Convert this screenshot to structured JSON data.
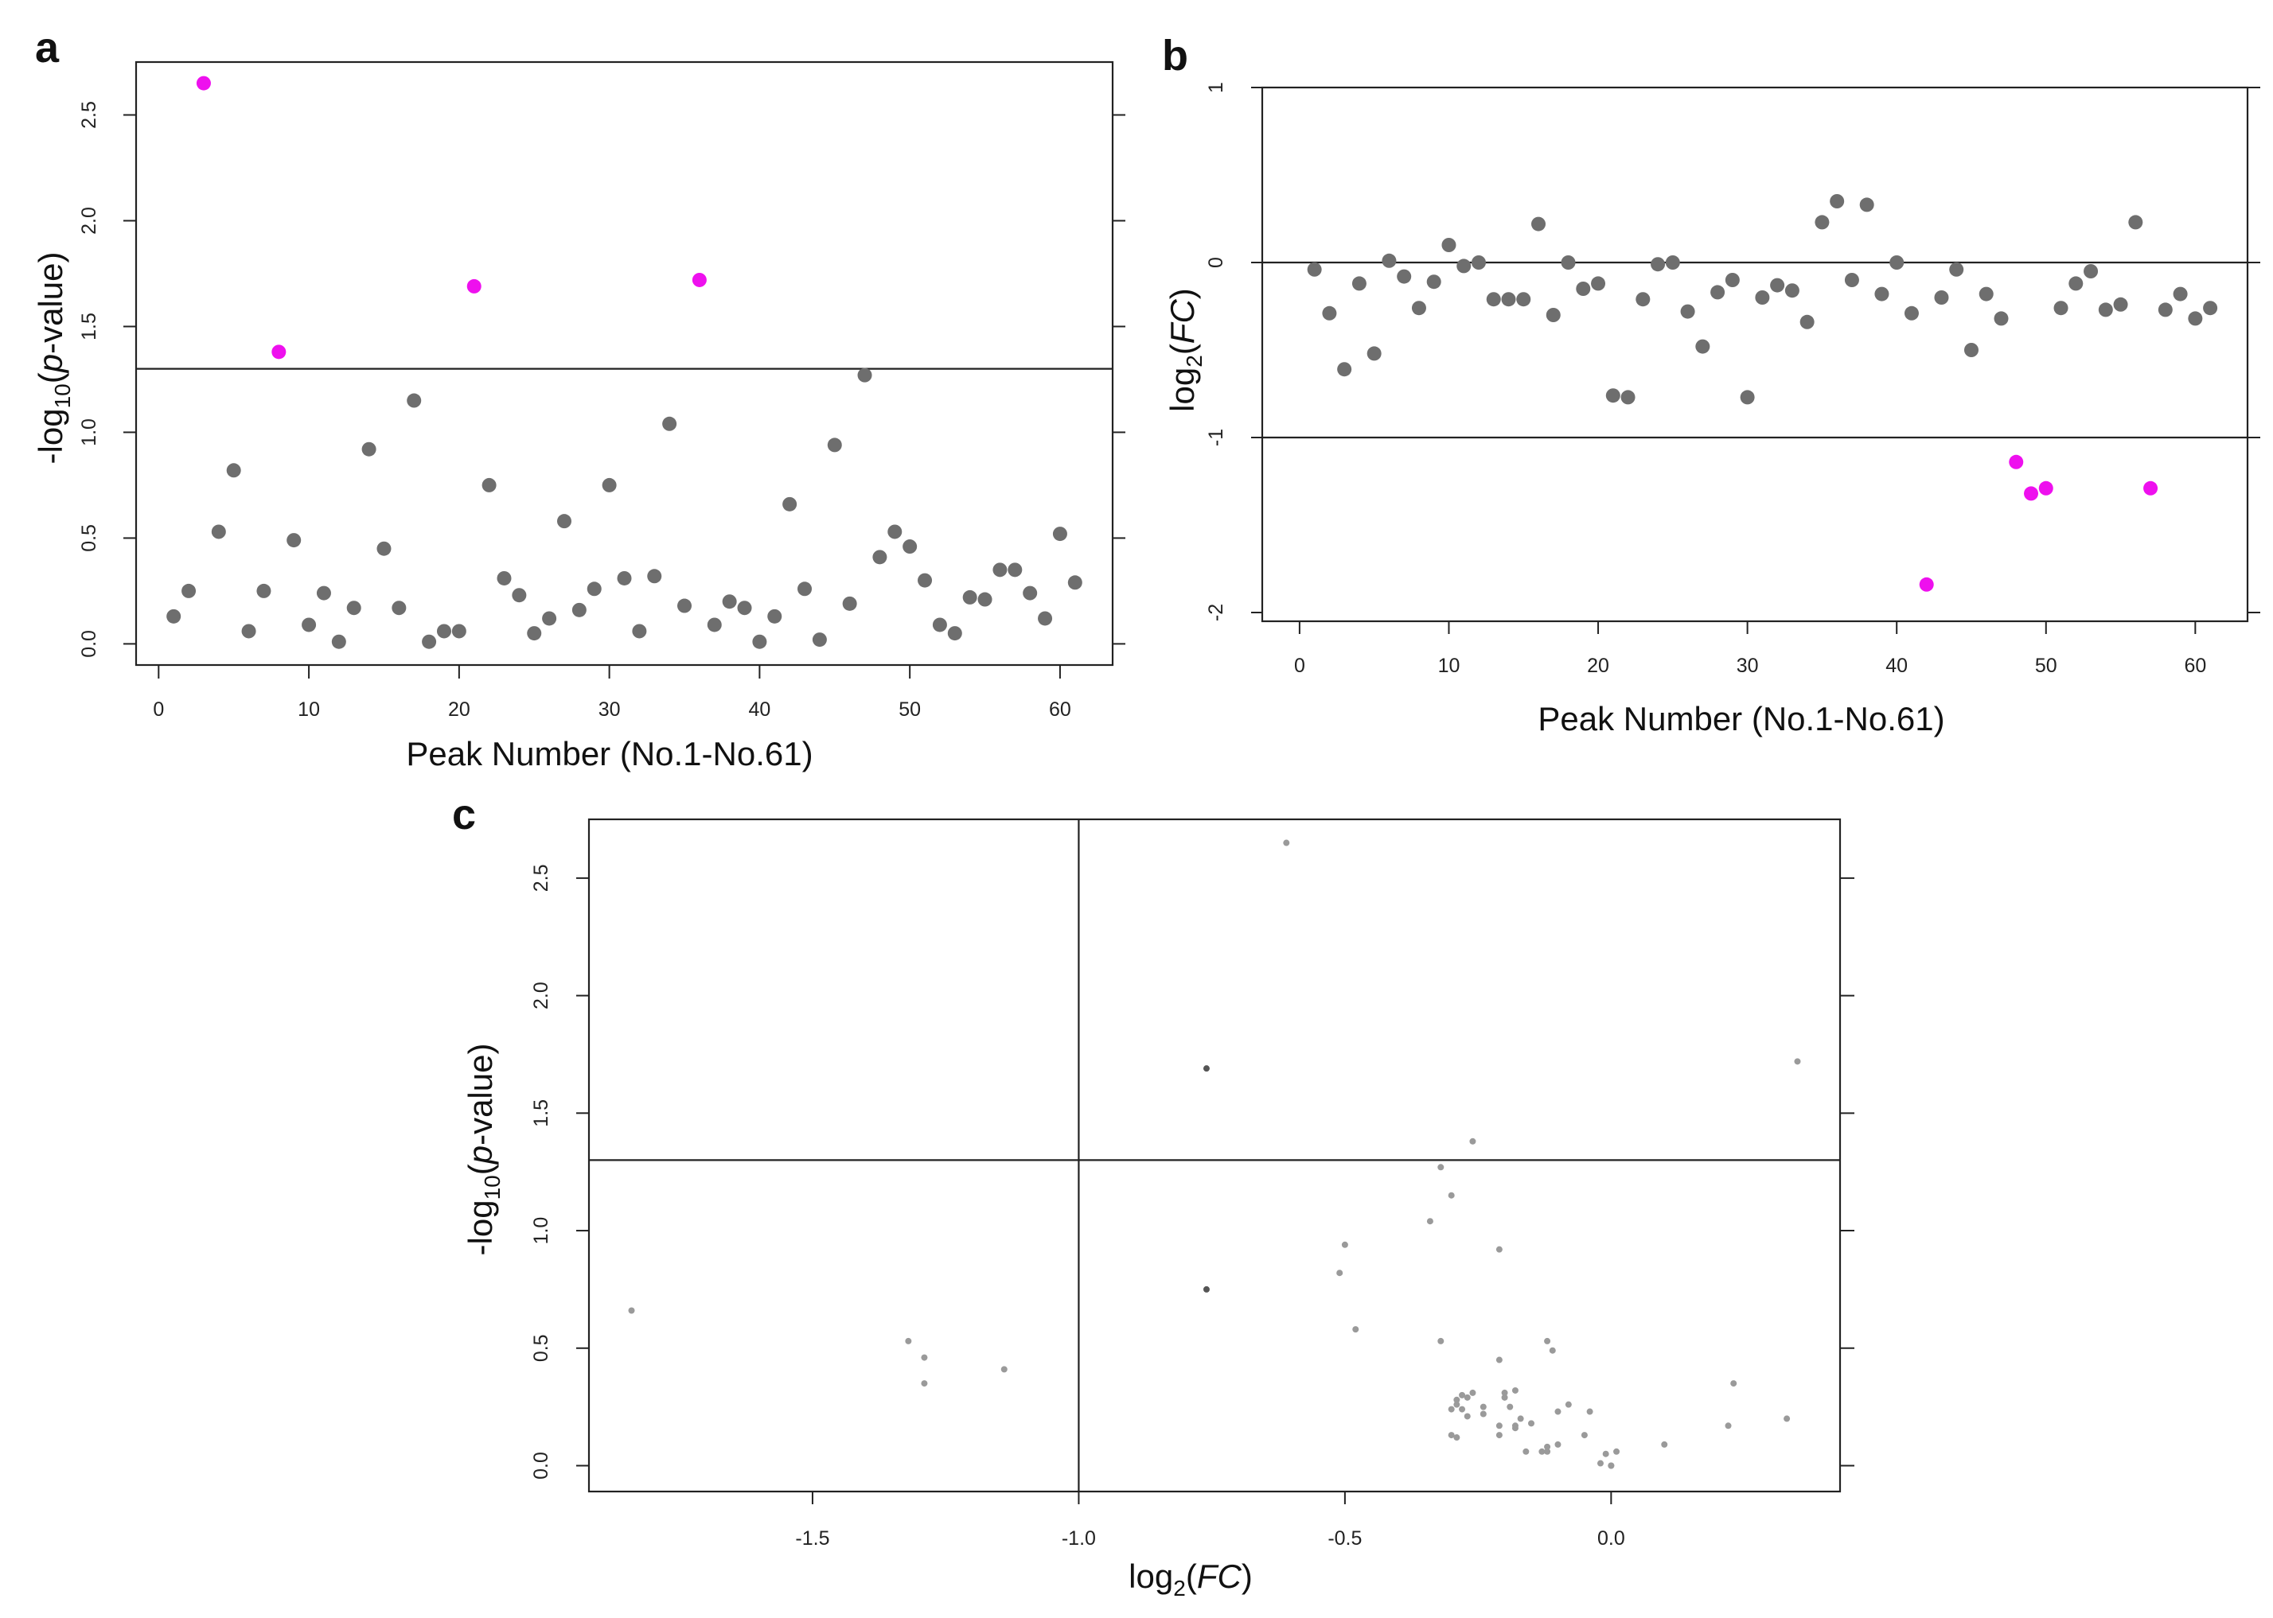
{
  "chart_data": [
    {
      "panel": "a",
      "type": "scatter",
      "xlabel": "Peak Number (No.1-No.61)",
      "ylabel": "-log10(p-value)",
      "ylabel_parts": [
        "-log",
        "10",
        "(",
        "p",
        "-value)"
      ],
      "xlim": [
        -1.5,
        63.5
      ],
      "ylim": [
        -0.1,
        2.75
      ],
      "xticks": [
        "0",
        "10",
        "20",
        "30",
        "40",
        "50",
        "60"
      ],
      "yticks": [
        "0.0",
        "0.5",
        "1.0",
        "1.5",
        "2.0",
        "2.5"
      ],
      "threshold_y": 1.3,
      "colors": {
        "normal": "#6e6e6e",
        "significant": "#ee10ee"
      },
      "x": [
        1,
        2,
        3,
        4,
        5,
        6,
        7,
        8,
        9,
        10,
        11,
        12,
        13,
        14,
        15,
        16,
        17,
        18,
        19,
        20,
        21,
        22,
        23,
        24,
        25,
        26,
        27,
        28,
        29,
        30,
        31,
        32,
        33,
        34,
        35,
        36,
        37,
        38,
        39,
        40,
        41,
        42,
        43,
        44,
        45,
        46,
        47,
        48,
        49,
        50,
        51,
        52,
        53,
        54,
        55,
        56,
        57,
        58,
        59,
        60,
        61
      ],
      "values": [
        0.13,
        0.25,
        2.65,
        0.53,
        0.82,
        0.06,
        0.25,
        1.38,
        0.49,
        0.09,
        0.24,
        0.01,
        0.17,
        0.92,
        0.45,
        0.17,
        1.15,
        0.01,
        0.06,
        0.06,
        1.69,
        0.75,
        0.31,
        0.23,
        0.05,
        0.12,
        0.58,
        0.16,
        0.26,
        0.75,
        0.31,
        0.06,
        0.32,
        1.04,
        0.18,
        1.72,
        0.09,
        0.2,
        0.17,
        0.01,
        0.13,
        0.66,
        0.26,
        0.02,
        0.94,
        0.19,
        1.27,
        0.41,
        0.53,
        0.46,
        0.3,
        0.09,
        0.05,
        0.22,
        0.21,
        0.35,
        0.35,
        0.24,
        0.12,
        0.52,
        0.29
      ],
      "significant": [
        3,
        8,
        21,
        36
      ]
    },
    {
      "panel": "b",
      "type": "scatter",
      "xlabel": "Peak Number (No.1-No.61)",
      "ylabel": "log2(FC)",
      "ylabel_parts": [
        "log",
        "2",
        "(",
        "FC",
        ")"
      ],
      "xlim": [
        -2.5,
        63.5
      ],
      "ylim": [
        -2.05,
        1.0
      ],
      "xticks": [
        "0",
        "10",
        "20",
        "30",
        "40",
        "50",
        "60"
      ],
      "yticks": [
        "-2",
        "-1",
        "0",
        "1"
      ],
      "reference_lines_y": [
        0,
        -1
      ],
      "colors": {
        "normal": "#6e6e6e",
        "significant": "#ee10ee"
      },
      "x": [
        1,
        2,
        3,
        4,
        5,
        6,
        7,
        8,
        9,
        10,
        11,
        12,
        13,
        14,
        15,
        16,
        17,
        18,
        19,
        20,
        21,
        22,
        23,
        24,
        25,
        26,
        27,
        28,
        29,
        30,
        31,
        32,
        33,
        34,
        35,
        36,
        37,
        38,
        39,
        40,
        41,
        42,
        43,
        44,
        45,
        46,
        47,
        48,
        49,
        50,
        51,
        52,
        53,
        54,
        55,
        56,
        57,
        58,
        59,
        60,
        61
      ],
      "values": [
        -0.04,
        -0.29,
        -0.61,
        -0.12,
        -0.52,
        0.01,
        -0.08,
        -0.26,
        -0.11,
        0.1,
        -0.02,
        0.0,
        -0.21,
        -0.21,
        -0.21,
        0.22,
        -0.3,
        0.0,
        -0.15,
        -0.12,
        -0.76,
        -0.77,
        -0.21,
        -0.01,
        0.0,
        -0.28,
        -0.48,
        -0.17,
        -0.1,
        -0.77,
        -0.2,
        -0.13,
        -0.16,
        -0.34,
        0.23,
        0.35,
        -0.1,
        0.33,
        -0.18,
        0.0,
        -0.29,
        -1.84,
        -0.2,
        -0.04,
        -0.5,
        -0.18,
        -0.32,
        -1.14,
        -1.32,
        -1.29,
        -0.26,
        -0.12,
        -0.05,
        -0.27,
        -0.24,
        0.23,
        -1.29,
        -0.27,
        -0.18,
        -0.32,
        -0.26
      ],
      "significant": [
        42,
        48,
        49,
        50,
        57
      ]
    },
    {
      "panel": "c",
      "type": "scatter",
      "xlabel": "log2(FC)",
      "xlabel_parts": [
        "log",
        "2",
        "(",
        "FC",
        ")"
      ],
      "ylabel": "-log10(p-value)",
      "ylabel_parts": [
        "-log",
        "10",
        "(",
        "p",
        "-value)"
      ],
      "xlim": [
        -1.92,
        0.43
      ],
      "ylim": [
        -0.11,
        2.75
      ],
      "xticks": [
        -1.5,
        -1.0,
        -0.5,
        0.0
      ],
      "xtick_labels": [
        "-1.5",
        "-1.0",
        "-0.5",
        "0.0"
      ],
      "yticks": [
        "0.0",
        "0.5",
        "1.0",
        "1.5",
        "2.0",
        "2.5"
      ],
      "threshold_y": 1.3,
      "threshold_x": -1.0,
      "colors": {
        "normal": "#9a9a9a",
        "dark": "#555555"
      },
      "x": [
        -0.61,
        -0.76,
        0.35,
        -0.26,
        -0.3,
        -0.32,
        -0.34,
        -0.5,
        -0.21,
        -0.51,
        -1.84,
        -0.76,
        -0.48,
        -0.32,
        -1.32,
        -0.12,
        -1.29,
        -0.11,
        -1.14,
        -0.21,
        -1.29,
        -0.18,
        -0.26,
        -0.27,
        -0.29,
        -0.3,
        -0.2,
        -0.19,
        -0.17,
        -0.1,
        -0.21,
        -0.24,
        -0.28,
        -0.04,
        -0.02,
        -0.13,
        -0.18,
        -0.1,
        -0.16,
        -0.15,
        -0.12,
        0.0,
        -0.01,
        0.01,
        0.0,
        -0.05,
        0.1,
        -0.08,
        -0.28,
        -0.27,
        -0.29,
        -0.3,
        -0.24,
        -0.29,
        -0.21,
        -0.2,
        -0.12,
        0.22,
        0.23,
        0.33,
        -0.18
      ],
      "values": [
        2.65,
        1.69,
        1.72,
        1.38,
        1.15,
        1.27,
        1.04,
        0.94,
        0.92,
        0.82,
        0.66,
        0.75,
        0.58,
        0.53,
        0.53,
        0.53,
        0.46,
        0.49,
        0.41,
        0.45,
        0.35,
        0.32,
        0.31,
        0.29,
        0.26,
        0.24,
        0.31,
        0.25,
        0.2,
        0.23,
        0.17,
        0.22,
        0.3,
        0.23,
        0.01,
        0.06,
        0.16,
        0.09,
        0.06,
        0.18,
        0.08,
        0.0,
        0.05,
        0.06,
        0.0,
        0.13,
        0.09,
        0.26,
        0.24,
        0.21,
        0.12,
        0.13,
        0.25,
        0.28,
        0.13,
        0.29,
        0.06,
        0.17,
        0.35,
        0.2,
        0.17
      ],
      "dark_points": [
        1,
        11
      ]
    }
  ],
  "panel_letters": {
    "a": "a",
    "b": "b",
    "c": "c"
  }
}
